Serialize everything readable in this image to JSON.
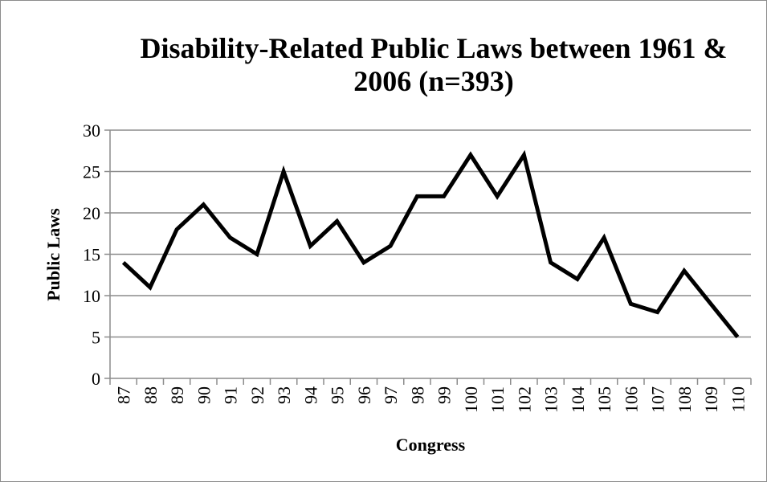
{
  "chart_data": {
    "type": "line",
    "title": "Disability-Related Public Laws between 1961 & 2006 (n=393)",
    "xlabel": "Congress",
    "ylabel": "Public Laws",
    "ylim": [
      0,
      30
    ],
    "yticks": [
      0,
      5,
      10,
      15,
      20,
      25,
      30
    ],
    "grid": true,
    "legend": "none",
    "line_color": "#000000",
    "categories": [
      "87",
      "88",
      "89",
      "90",
      "91",
      "92",
      "93",
      "94",
      "95",
      "96",
      "97",
      "98",
      "99",
      "100",
      "101",
      "102",
      "103",
      "104",
      "105",
      "106",
      "107",
      "108",
      "109",
      "110"
    ],
    "series": [
      {
        "values": [
          14,
          11,
          18,
          21,
          17,
          15,
          25,
          16,
          19,
          14,
          16,
          22,
          22,
          27,
          22,
          27,
          14,
          12,
          17,
          9,
          8,
          13,
          9,
          5
        ]
      }
    ]
  }
}
